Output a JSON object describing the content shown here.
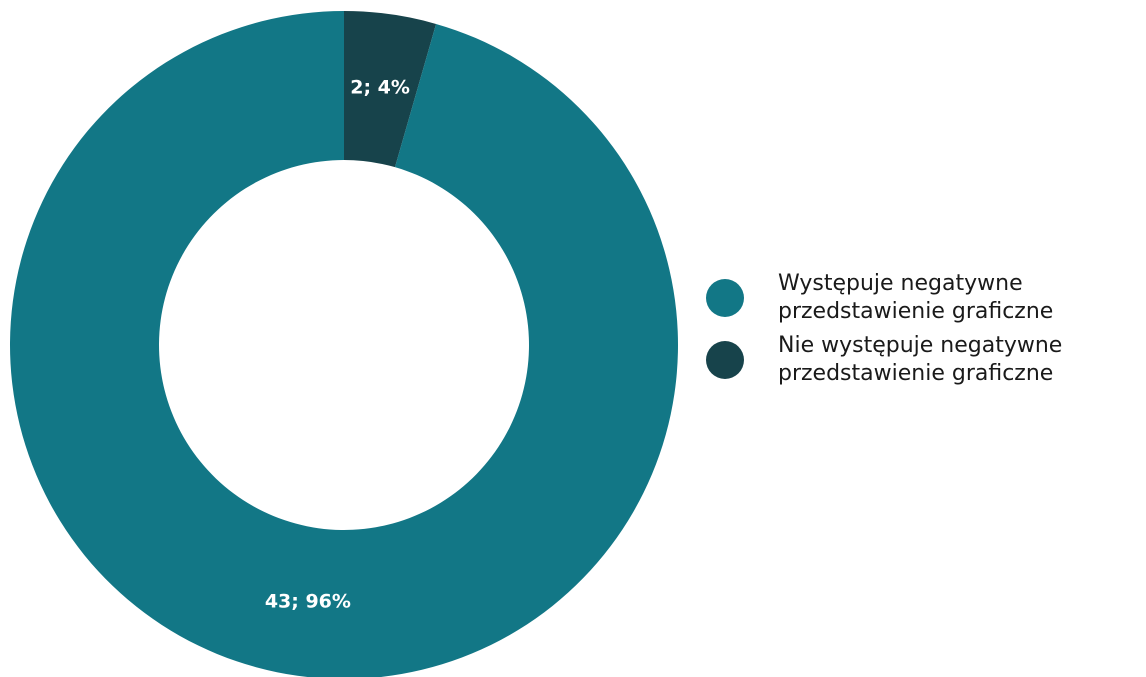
{
  "chart_data": {
    "type": "pie",
    "donut": true,
    "slices": [
      {
        "label_line1": "Występuje negatywne",
        "label_line2": "przedstawienie graficzne",
        "value": 43,
        "percent": 96,
        "data_label": "43; 96%",
        "color": "#127786"
      },
      {
        "label_line1": "Nie występuje negatywne",
        "label_line2": "przedstawienie graficzne",
        "value": 2,
        "percent": 4,
        "data_label": "2; 4%",
        "color": "#17434b"
      }
    ],
    "legend_position": "right"
  }
}
